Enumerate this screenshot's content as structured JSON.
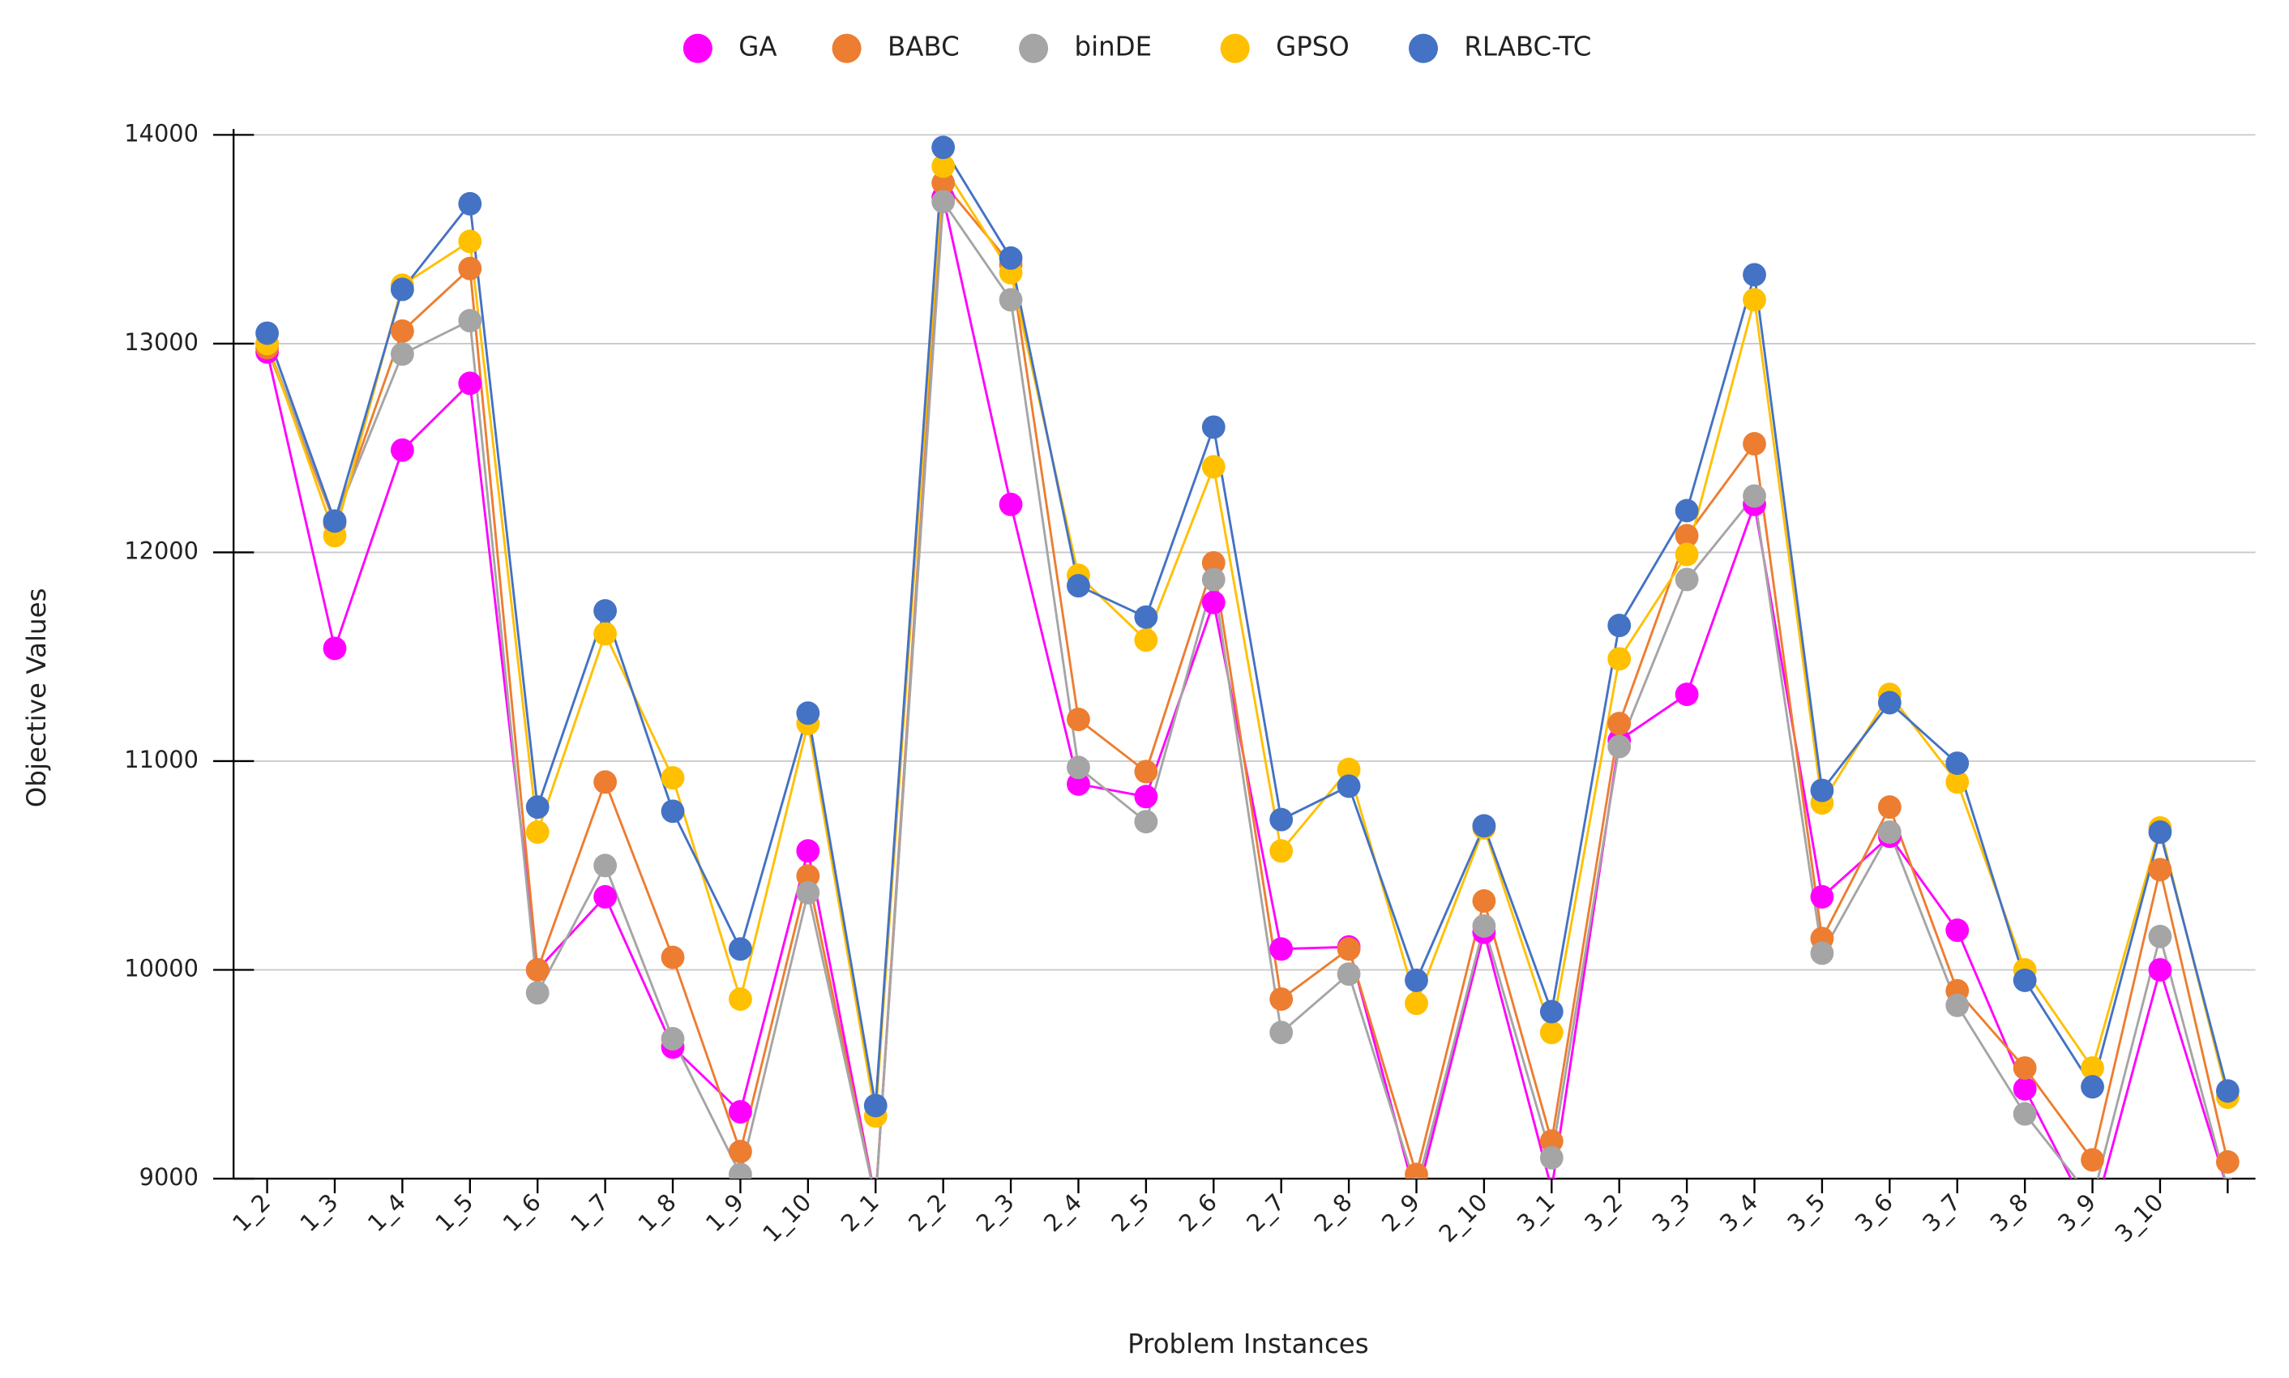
{
  "chart_data": {
    "type": "line",
    "x_label": "Problem Instances",
    "y_label": "Objective Values",
    "categories": [
      "1_2",
      "1_3",
      "1_4",
      "1_5",
      "1_6",
      "1_7",
      "1_8",
      "1_9",
      "1_10",
      "2_1",
      "2_2",
      "2_3",
      "2_4",
      "2_5",
      "2_6",
      "2_7",
      "2_8",
      "2_9",
      "2_10",
      "3_1",
      "3_2",
      "3_3",
      "3_4",
      "3_5",
      "3_6",
      "3_7",
      "3_8",
      "3_9",
      "3_10",
      null
    ],
    "series": [
      {
        "name": "GA",
        "color": "#ff00ff",
        "values": [
          12960,
          11540,
          12490,
          12810,
          10000,
          10350,
          9630,
          9320,
          10570,
          8900,
          13700,
          12230,
          10890,
          10830,
          11760,
          10100,
          10110,
          8900,
          10180,
          8950,
          11100,
          11320,
          12230,
          10350,
          10640,
          10190,
          9430,
          8800,
          10000,
          8950
        ]
      },
      {
        "name": "BABC",
        "color": "#ed7d31",
        "values": [
          12980,
          12140,
          13060,
          13360,
          10000,
          10900,
          10060,
          9130,
          10450,
          8900,
          13770,
          13380,
          11200,
          10950,
          11950,
          9860,
          10100,
          9020,
          10330,
          9180,
          11180,
          12080,
          12520,
          10150,
          10780,
          9900,
          9530,
          9090,
          10480,
          9080
        ]
      },
      {
        "name": "binDE",
        "color": "#a5a5a5",
        "values": [
          13000,
          12150,
          12950,
          13110,
          9890,
          10500,
          9670,
          9020,
          10370,
          8900,
          13680,
          13210,
          10970,
          10710,
          11870,
          9700,
          9980,
          8950,
          10210,
          9100,
          11070,
          11870,
          12270,
          10080,
          10660,
          9830,
          9310,
          8900,
          10160,
          8950
        ]
      },
      {
        "name": "GPSO",
        "color": "#ffc000",
        "values": [
          13000,
          12080,
          13280,
          13490,
          10660,
          11610,
          10920,
          9860,
          11180,
          9300,
          13850,
          13340,
          11890,
          11580,
          12410,
          10570,
          10960,
          9840,
          10680,
          9700,
          11490,
          11990,
          13210,
          10800,
          11320,
          10900,
          10000,
          9530,
          10680,
          9390
        ]
      },
      {
        "name": "RLABC-TC",
        "color": "#4472c4",
        "values": [
          13050,
          12150,
          13260,
          13670,
          10780,
          11720,
          10760,
          10100,
          11230,
          9350,
          13940,
          13410,
          11840,
          11690,
          12600,
          10720,
          10880,
          9950,
          10690,
          9800,
          11650,
          12200,
          13330,
          10860,
          11280,
          10990,
          9950,
          9440,
          10660,
          9420
        ]
      }
    ],
    "ylim": [
      9000,
      14000
    ],
    "yticks": [
      9000,
      10000,
      11000,
      12000,
      13000,
      14000
    ],
    "grid": true,
    "legend": "top"
  }
}
